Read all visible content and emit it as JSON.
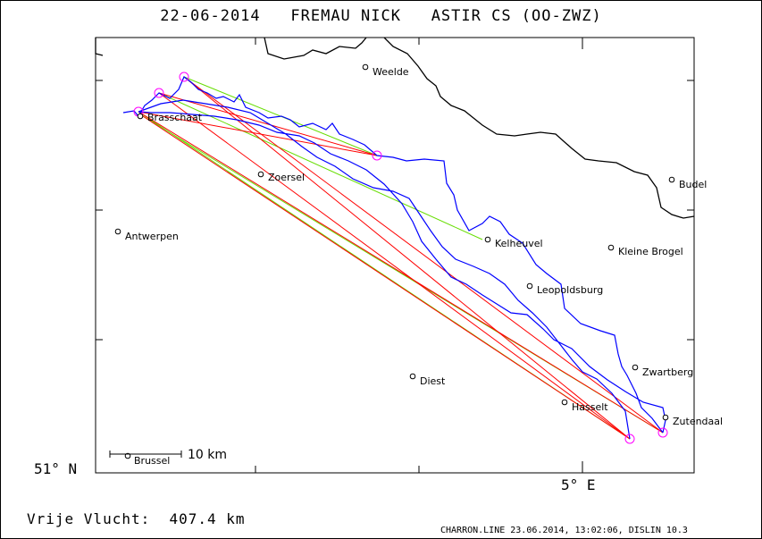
{
  "title": {
    "date": "22-06-2014",
    "pilot": "FREMAU NICK",
    "glider": "ASTIR CS (OO-ZWZ)"
  },
  "axes": {
    "lat_label": "51° N",
    "lon_label": "5° E"
  },
  "places": [
    {
      "name": "Weelde"
    },
    {
      "name": "Brasschaat"
    },
    {
      "name": "Zoersel"
    },
    {
      "name": "Budel"
    },
    {
      "name": "Antwerpen"
    },
    {
      "name": "Kelheuvel"
    },
    {
      "name": "Kleine Brogel"
    },
    {
      "name": "Leopoldsburg"
    },
    {
      "name": "Zwartberg"
    },
    {
      "name": "Diest"
    },
    {
      "name": "Hasselt"
    },
    {
      "name": "Zutendaal"
    },
    {
      "name": "Brussel"
    }
  ],
  "scale": {
    "label": "10 km"
  },
  "flight": {
    "label": "Vrije Vlucht:",
    "distance": "407.4 km"
  },
  "footer": {
    "text": "CHARRON.LINE 23.06.2014, 13:02:06, DISLIN 10.3"
  },
  "colors": {
    "track": "#0000ff",
    "leg_optimized": "#ff0000",
    "leg_alt": "#66dd00",
    "turnpoint": "#ff00ff",
    "border": "#000000"
  }
}
